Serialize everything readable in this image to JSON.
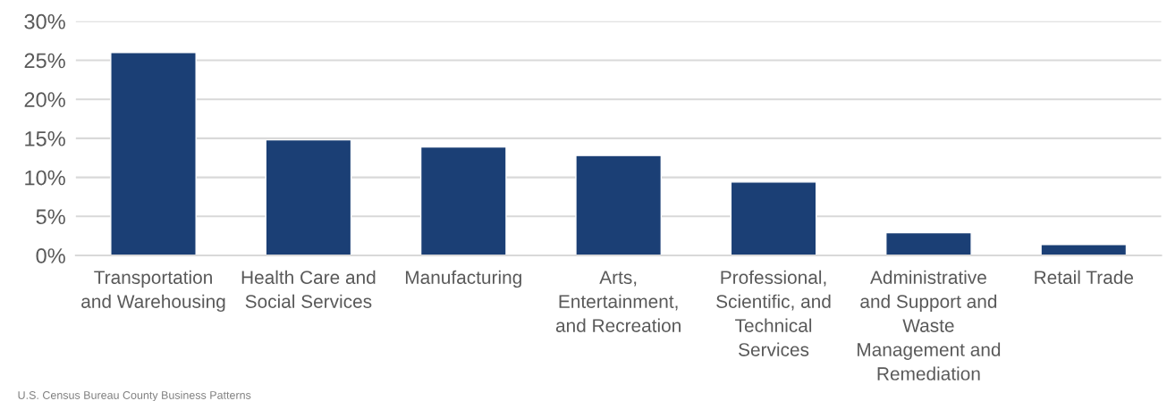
{
  "chart_data": {
    "type": "bar",
    "categories": [
      "Transportation\nand Warehousing",
      "Health Care and\nSocial Services",
      "Manufacturing",
      "Arts,\nEntertainment,\nand Recreation",
      "Professional,\nScientific, and\nTechnical\nServices",
      "Administrative\nand Support and\nWaste\nManagement and\nRemediation",
      "Retail Trade"
    ],
    "values": [
      26.0,
      14.8,
      13.9,
      12.8,
      9.4,
      2.9,
      1.4
    ],
    "color": "#1b3f75",
    "ylim": [
      0,
      30
    ],
    "yticks": [
      {
        "value": 0,
        "label": "0%"
      },
      {
        "value": 5,
        "label": "5%"
      },
      {
        "value": 10,
        "label": "10%"
      },
      {
        "value": 15,
        "label": "15%"
      },
      {
        "value": 20,
        "label": "20%"
      },
      {
        "value": 25,
        "label": "25%"
      },
      {
        "value": 30,
        "label": "30%"
      }
    ],
    "grid": "y",
    "legend": false,
    "annotations": [
      "U.S. Census Bureau County Business Patterns"
    ]
  }
}
